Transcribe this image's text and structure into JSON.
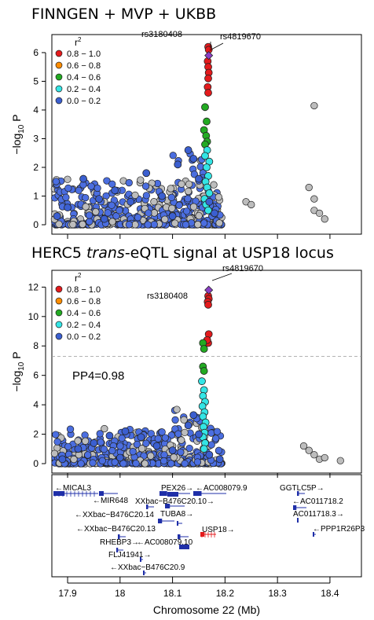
{
  "panel1": {
    "title": "FINNGEN + MVP + UKBB",
    "ylabel_prefix": "−log",
    "ylabel_sub": "10",
    "ylabel_suffix": " P",
    "yticks": [
      "0",
      "1",
      "2",
      "3",
      "4",
      "5",
      "6"
    ],
    "lead_snp_label": "rs3180408",
    "index_snp_label": "rs4819670"
  },
  "panel2": {
    "title_prefix": "HERC5 ",
    "title_italic": "trans",
    "title_suffix": "-eQTL signal at USP18 locus",
    "ylabel_prefix": "−log",
    "ylabel_sub": "10",
    "ylabel_suffix": " P",
    "yticks": [
      "0",
      "2",
      "4",
      "6",
      "8",
      "10",
      "12"
    ],
    "lead_snp_label": "rs3180408",
    "index_snp_label": "rs4819670",
    "pp4_label": "PP4=0.98"
  },
  "legend": {
    "title": "r",
    "title_sup": "2",
    "items": [
      {
        "label": "0.8 − 1.0",
        "color": "#e41a1c"
      },
      {
        "label": "0.6 − 0.8",
        "color": "#ff8c00"
      },
      {
        "label": "0.4 − 0.6",
        "color": "#22aa22"
      },
      {
        "label": "0.2 − 0.4",
        "color": "#33e5e5"
      },
      {
        "label": "0.0 − 0.2",
        "color": "#3b5fd0"
      }
    ]
  },
  "genes": {
    "MICAL3": "←MICAL3",
    "MIR648": "←MIR648",
    "XXbac14": "←XXbac−B476C20.14",
    "XXbac13": "←XXbac−B476C20.13",
    "RHEBP3": "RHEBP3→",
    "FLJ41941": "FLJ41941→",
    "XXbac9": "←XXbac−B476C20.9",
    "PEX26": "PEX26→",
    "XXbac10": "XXbac−B476C20.10→",
    "TUBA8": "TUBA8→",
    "AC0791": "←AC008079.9",
    "AC07910": "←AC008079.10",
    "USP18": "USP18→",
    "GGTLC5P": "GGTLC5P→",
    "AC0117182": "←AC011718.2",
    "AC0117183": "AC011718.3→",
    "PPP1R26P3": "←PPP1R26P3"
  },
  "xaxis": {
    "label": "Chromosome 22 (Mb)",
    "ticks": [
      "17.9",
      "18",
      "18.1",
      "18.2",
      "18.3",
      "18.4"
    ]
  },
  "chart_data": [
    {
      "type": "scatter",
      "title": "FINNGEN + MVP + UKBB",
      "xlabel": "Chromosome 22 (Mb)",
      "ylabel": "−log10 P",
      "ylim": [
        0,
        6.3
      ],
      "xlim": [
        17.87,
        18.46
      ],
      "legend_placement": "top-left",
      "grid": false,
      "series": [
        {
          "name": "0.8 − 1.0",
          "color": "#e41a1c",
          "points": [
            [
              18.168,
              6.2
            ],
            [
              18.169,
              6.1
            ],
            [
              18.167,
              5.7
            ],
            [
              18.168,
              5.5
            ],
            [
              18.169,
              5.3
            ],
            [
              18.168,
              5.1
            ],
            [
              18.167,
              4.8
            ],
            [
              18.168,
              4.6
            ]
          ]
        },
        {
          "name": "0.4 − 0.6",
          "color": "#22aa22",
          "points": [
            [
              18.162,
              4.1
            ],
            [
              18.165,
              3.6
            ],
            [
              18.16,
              3.3
            ],
            [
              18.164,
              3.1
            ],
            [
              18.166,
              2.9
            ],
            [
              18.162,
              2.8
            ]
          ]
        },
        {
          "name": "0.2 − 0.4",
          "color": "#33e5e5",
          "points": [
            [
              18.166,
              2.6
            ],
            [
              18.162,
              2.4
            ],
            [
              18.17,
              2.2
            ],
            [
              18.165,
              2.0
            ],
            [
              18.168,
              1.7
            ],
            [
              18.163,
              1.5
            ],
            [
              18.166,
              1.3
            ],
            [
              18.17,
              1.1
            ],
            [
              18.161,
              0.9
            ],
            [
              18.164,
              0.7
            ],
            [
              18.168,
              0.5
            ]
          ]
        },
        {
          "name": "0.0 − 0.2",
          "color": "#3b5fd0",
          "points": [
            [
              17.88,
              0.3
            ],
            [
              17.9,
              0.6
            ],
            [
              17.93,
              1.6
            ],
            [
              17.96,
              0.9
            ],
            [
              17.99,
              1.2
            ],
            [
              18.02,
              0.8
            ],
            [
              18.05,
              1.8
            ],
            [
              18.08,
              1.0
            ],
            [
              18.11,
              2.1
            ],
            [
              18.13,
              2.6
            ],
            [
              18.14,
              2.3
            ],
            [
              18.15,
              1.6
            ],
            [
              18.17,
              0.8
            ],
            [
              18.18,
              0.4
            ],
            [
              17.97,
              0.2
            ],
            [
              18.1,
              0.3
            ]
          ]
        },
        {
          "name": "index",
          "color": "#8a3fc4",
          "points": [
            [
              18.169,
              5.9
            ]
          ]
        }
      ]
    },
    {
      "type": "scatter",
      "title": "HERC5 trans-eQTL signal at USP18 locus",
      "xlabel": "Chromosome 22 (Mb)",
      "ylabel": "−log10 P",
      "ylim": [
        0,
        12.5
      ],
      "xlim": [
        17.87,
        18.46
      ],
      "legend_placement": "top-left",
      "grid": false,
      "threshold": 7.3,
      "series": [
        {
          "name": "0.8 − 1.0",
          "color": "#e41a1c",
          "points": [
            [
              18.168,
              11.4
            ],
            [
              18.169,
              11.2
            ],
            [
              18.167,
              11.0
            ],
            [
              18.168,
              10.8
            ],
            [
              18.169,
              8.8
            ],
            [
              18.168,
              8.2
            ],
            [
              18.166,
              8.4
            ]
          ]
        },
        {
          "name": "0.4 − 0.6",
          "color": "#22aa22",
          "points": [
            [
              18.158,
              8.2
            ],
            [
              18.16,
              7.8
            ],
            [
              18.158,
              6.6
            ],
            [
              18.16,
              6.3
            ]
          ]
        },
        {
          "name": "0.2 − 0.4",
          "color": "#33e5e5",
          "points": [
            [
              18.156,
              5.6
            ],
            [
              18.16,
              5.0
            ],
            [
              18.158,
              4.6
            ],
            [
              18.162,
              4.2
            ],
            [
              18.157,
              3.9
            ],
            [
              18.161,
              3.5
            ],
            [
              18.158,
              3.2
            ],
            [
              18.163,
              2.8
            ],
            [
              18.159,
              2.5
            ],
            [
              18.161,
              2.1
            ],
            [
              18.158,
              1.8
            ],
            [
              18.162,
              1.4
            ],
            [
              18.16,
              1.0
            ]
          ]
        },
        {
          "name": "0.0 − 0.2",
          "color": "#3b5fd0",
          "points": [
            [
              17.89,
              0.3
            ],
            [
              17.92,
              1.0
            ],
            [
              17.95,
              1.4
            ],
            [
              17.98,
              1.9
            ],
            [
              18.01,
              2.2
            ],
            [
              18.04,
              1.8
            ],
            [
              18.07,
              1.2
            ],
            [
              18.1,
              0.9
            ],
            [
              18.13,
              2.6
            ],
            [
              18.14,
              3.3
            ],
            [
              18.15,
              2.0
            ],
            [
              18.17,
              0.6
            ],
            [
              18.19,
              0.3
            ],
            [
              18.0,
              0.4
            ]
          ]
        },
        {
          "name": "index",
          "color": "#8a3fc4",
          "points": [
            [
              18.169,
              11.8
            ]
          ]
        }
      ]
    }
  ]
}
